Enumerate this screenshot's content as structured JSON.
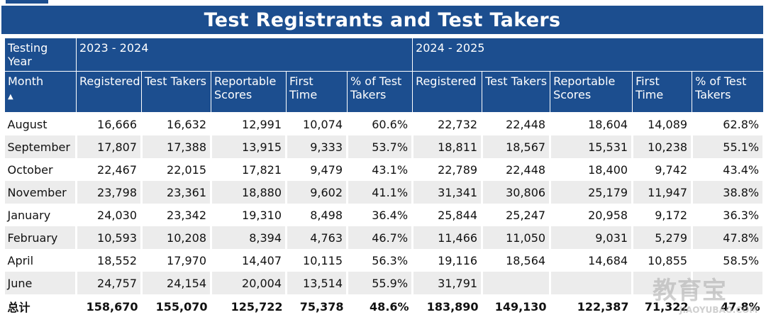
{
  "title": "Test Registrants and Test Takers",
  "header": {
    "testing_year": "Testing Year",
    "year1": "2023 - 2024",
    "year2": "2024 - 2025",
    "month": "Month",
    "columns": [
      "Registered",
      "Test Takers",
      "Reportable Scores",
      "First Time",
      "% of Test Takers"
    ]
  },
  "rows": [
    {
      "month": "August",
      "y1": [
        "16,666",
        "16,632",
        "12,991",
        "10,074",
        "60.6%"
      ],
      "y2": [
        "22,732",
        "22,448",
        "18,604",
        "14,089",
        "62.8%"
      ]
    },
    {
      "month": "September",
      "y1": [
        "17,807",
        "17,388",
        "13,915",
        "9,333",
        "53.7%"
      ],
      "y2": [
        "18,811",
        "18,567",
        "15,531",
        "10,238",
        "55.1%"
      ]
    },
    {
      "month": "October",
      "y1": [
        "22,467",
        "22,015",
        "17,821",
        "9,479",
        "43.1%"
      ],
      "y2": [
        "22,789",
        "22,448",
        "18,400",
        "9,742",
        "43.4%"
      ]
    },
    {
      "month": "November",
      "y1": [
        "23,798",
        "23,361",
        "18,880",
        "9,602",
        "41.1%"
      ],
      "y2": [
        "31,341",
        "30,806",
        "25,179",
        "11,947",
        "38.8%"
      ]
    },
    {
      "month": "January",
      "y1": [
        "24,030",
        "23,342",
        "19,310",
        "8,498",
        "36.4%"
      ],
      "y2": [
        "25,844",
        "25,247",
        "20,958",
        "9,172",
        "36.3%"
      ]
    },
    {
      "month": "February",
      "y1": [
        "10,593",
        "10,208",
        "8,394",
        "4,763",
        "46.7%"
      ],
      "y2": [
        "11,466",
        "11,050",
        "9,031",
        "5,279",
        "47.8%"
      ]
    },
    {
      "month": "April",
      "y1": [
        "18,552",
        "17,970",
        "14,407",
        "10,115",
        "56.3%"
      ],
      "y2": [
        "19,116",
        "18,564",
        "14,684",
        "10,855",
        "58.5%"
      ]
    },
    {
      "month": "June",
      "y1": [
        "24,757",
        "24,154",
        "20,004",
        "13,514",
        "55.9%"
      ],
      "y2": [
        "31,791",
        "",
        "",
        "",
        ""
      ]
    }
  ],
  "total": {
    "label": "总计",
    "y1": [
      "158,670",
      "155,070",
      "125,722",
      "75,378",
      "48.6%"
    ],
    "y2": [
      "183,890",
      "149,130",
      "122,387",
      "71,322",
      "47.8%"
    ]
  },
  "watermark": {
    "text": "教育宝",
    "sub": "JIAOYUBAO.COM"
  },
  "colors": {
    "header_bg": "#1c4e8f",
    "alt_row_bg": "#ececec"
  }
}
